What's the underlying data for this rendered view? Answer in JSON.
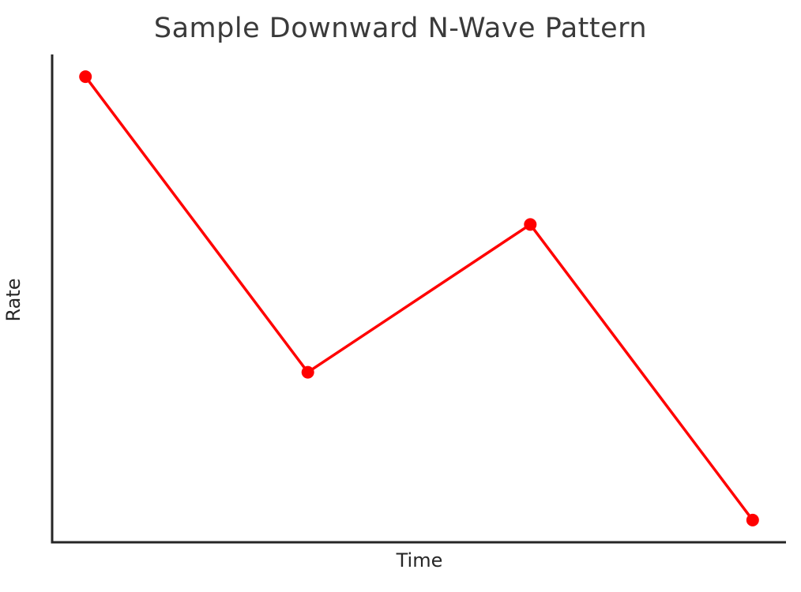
{
  "chart_data": {
    "type": "line",
    "title": "Sample Downward N-Wave Pattern",
    "xlabel": "Time",
    "ylabel": "Rate",
    "x": [
      0,
      1,
      2,
      3
    ],
    "series": [
      {
        "name": "rate",
        "values": [
          10,
          4,
          7,
          1
        ],
        "color": "#ff0000",
        "marker": "circle",
        "line_width": 3.5,
        "marker_radius": 8
      }
    ],
    "xlim": [
      -0.15,
      3.15
    ],
    "ylim": [
      0.55,
      10.45
    ],
    "grid": false,
    "legend": "none",
    "tick_labels": "none",
    "spine_color": "#262626"
  }
}
